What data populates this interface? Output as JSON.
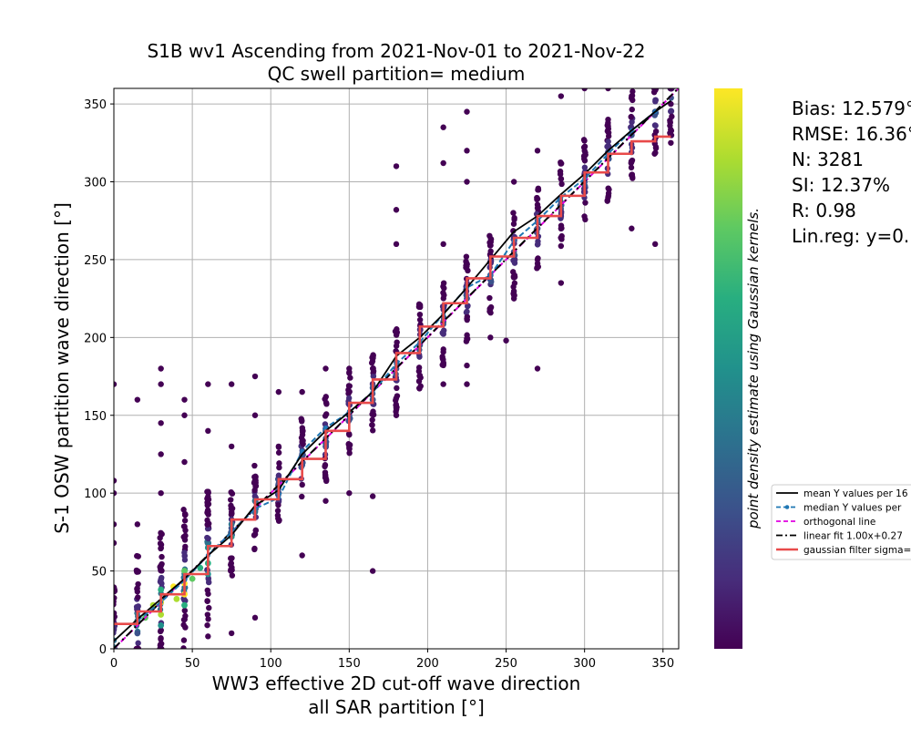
{
  "chart_data": {
    "type": "scatter",
    "title": "S1B wv1 Ascending from 2021-Nov-01 to 2021-Nov-22",
    "subtitle": "QC swell partition= medium",
    "xlabel_line1": "WW3 effective 2D cut-off wave direction",
    "xlabel_line2": "all SAR partition [°]",
    "ylabel": "S-1 OSW partition wave direction [°]",
    "xlim": [
      0,
      360
    ],
    "ylim": [
      0,
      360
    ],
    "xticks": [
      0,
      50,
      100,
      150,
      200,
      250,
      300,
      350
    ],
    "yticks": [
      0,
      50,
      100,
      150,
      200,
      250,
      300,
      350
    ],
    "grid": true,
    "colorbar_label": "point density estimate using Gaussian kernels.",
    "colormap_stops": [
      "#440154",
      "#472d7b",
      "#3b528b",
      "#2c728e",
      "#21918c",
      "#28ae80",
      "#5ec962",
      "#addc30",
      "#fde725"
    ],
    "stats": [
      "Bias: 12.579°",
      "RMSE: 16.36°",
      "N: 3281",
      "SI: 12.37%",
      "R: 0.98",
      "Lin.reg: y=0."
    ],
    "legend": {
      "placement": "right",
      "entries": [
        {
          "label": "mean Y values per 16",
          "color": "#000000",
          "style": "solid"
        },
        {
          "label": "median Y values per",
          "color": "#1f77b4",
          "style": "dashed-dot"
        },
        {
          "label": "orthogonal line",
          "color": "#e000e0",
          "style": "dashed"
        },
        {
          "label": "linear fit 1.00x+0.27",
          "color": "#000000",
          "style": "dashdot"
        },
        {
          "label": "gaussian filter sigma=",
          "color": "#e84a4a",
          "style": "solid-thick"
        }
      ]
    },
    "column_x": [
      0,
      15,
      30,
      45,
      60,
      75,
      90,
      105,
      120,
      135,
      150,
      165,
      180,
      195,
      210,
      225,
      240,
      255,
      270,
      285,
      300,
      315,
      330,
      345,
      355
    ],
    "mean_line": {
      "x": [
        0,
        15,
        30,
        45,
        60,
        75,
        90,
        105,
        120,
        135,
        150,
        165,
        180,
        195,
        210,
        225,
        240,
        255,
        270,
        285,
        300,
        315,
        330,
        345,
        355
      ],
      "y": [
        5,
        19,
        32,
        45,
        60,
        73,
        92,
        102,
        125,
        140,
        152,
        165,
        188,
        200,
        215,
        232,
        250,
        268,
        278,
        292,
        305,
        320,
        333,
        345,
        352
      ]
    },
    "median_line": {
      "x": [
        15,
        30,
        45,
        60,
        75,
        90,
        105,
        120,
        135,
        150,
        165,
        180,
        195,
        210,
        225,
        240,
        255,
        270,
        285,
        300,
        315,
        330,
        345
      ],
      "y": [
        18,
        30,
        44,
        60,
        75,
        90,
        97,
        127,
        142,
        152,
        165,
        183,
        197,
        215,
        232,
        240,
        262,
        275,
        290,
        302,
        318,
        333,
        345
      ]
    },
    "gaussian_steps": {
      "x": [
        0,
        15,
        15,
        30,
        30,
        45,
        45,
        60,
        60,
        75,
        75,
        90,
        90,
        105,
        105,
        120,
        120,
        135,
        135,
        150,
        150,
        165,
        165,
        180,
        180,
        195,
        195,
        210,
        210,
        225,
        225,
        240,
        240,
        255,
        255,
        270,
        270,
        285,
        285,
        300,
        300,
        315,
        315,
        330,
        330,
        345,
        345,
        355
      ],
      "y": [
        16,
        16,
        24,
        24,
        35,
        35,
        48,
        48,
        66,
        66,
        83,
        83,
        96,
        96,
        109,
        109,
        122,
        122,
        140,
        140,
        158,
        158,
        173,
        173,
        190,
        190,
        207,
        207,
        222,
        222,
        238,
        238,
        252,
        252,
        264,
        264,
        278,
        278,
        291,
        291,
        306,
        306,
        318,
        318,
        326,
        326,
        329,
        329
      ]
    },
    "linear_fit": {
      "slope": 1.0,
      "intercept": 0.27
    },
    "orthogonal_line": {
      "x": [
        0,
        360
      ],
      "y": [
        0,
        360
      ]
    },
    "cluster_points": [
      [
        15,
        18,
        3
      ],
      [
        15,
        10,
        2
      ],
      [
        15,
        25,
        1
      ],
      [
        30,
        22,
        7
      ],
      [
        30,
        30,
        8
      ],
      [
        30,
        38,
        5
      ],
      [
        30,
        15,
        4
      ],
      [
        45,
        35,
        8
      ],
      [
        45,
        42,
        8
      ],
      [
        45,
        50,
        6
      ],
      [
        45,
        28,
        5
      ],
      [
        60,
        55,
        5
      ],
      [
        60,
        65,
        4
      ],
      [
        60,
        48,
        4
      ],
      [
        20,
        20,
        6
      ],
      [
        25,
        28,
        7
      ],
      [
        38,
        40,
        8
      ],
      [
        40,
        32,
        7
      ],
      [
        50,
        45,
        6
      ],
      [
        55,
        52,
        5
      ],
      [
        75,
        72,
        4
      ],
      [
        75,
        80,
        3
      ],
      [
        90,
        88,
        3
      ],
      [
        90,
        95,
        3
      ],
      [
        105,
        100,
        2
      ],
      [
        120,
        118,
        2
      ],
      [
        120,
        125,
        2
      ],
      [
        135,
        130,
        2
      ],
      [
        135,
        140,
        2
      ],
      [
        150,
        150,
        2
      ],
      [
        165,
        160,
        2
      ],
      [
        180,
        180,
        2
      ],
      [
        195,
        195,
        2
      ],
      [
        210,
        210,
        2
      ],
      [
        225,
        225,
        2
      ],
      [
        240,
        240,
        2
      ],
      [
        255,
        255,
        2
      ],
      [
        270,
        270,
        2
      ],
      [
        285,
        285,
        2
      ],
      [
        300,
        300,
        2
      ],
      [
        315,
        315,
        2
      ],
      [
        330,
        330,
        2
      ],
      [
        345,
        345,
        2
      ]
    ],
    "outlier_points": [
      [
        0,
        170
      ],
      [
        0,
        108
      ],
      [
        0,
        100
      ],
      [
        0,
        80
      ],
      [
        0,
        68
      ],
      [
        15,
        160
      ],
      [
        15,
        80
      ],
      [
        30,
        180
      ],
      [
        30,
        170
      ],
      [
        30,
        145
      ],
      [
        30,
        125
      ],
      [
        30,
        100
      ],
      [
        45,
        160
      ],
      [
        45,
        150
      ],
      [
        45,
        120
      ],
      [
        60,
        170
      ],
      [
        60,
        140
      ],
      [
        60,
        8
      ],
      [
        75,
        170
      ],
      [
        75,
        130
      ],
      [
        75,
        10
      ],
      [
        90,
        175
      ],
      [
        90,
        150
      ],
      [
        90,
        20
      ],
      [
        105,
        165
      ],
      [
        105,
        130
      ],
      [
        120,
        165
      ],
      [
        120,
        60
      ],
      [
        135,
        180
      ],
      [
        135,
        95
      ],
      [
        150,
        180
      ],
      [
        150,
        100
      ],
      [
        165,
        180
      ],
      [
        165,
        50
      ],
      [
        165,
        98
      ],
      [
        180,
        310
      ],
      [
        180,
        282
      ],
      [
        180,
        260
      ],
      [
        180,
        150
      ],
      [
        195,
        220
      ],
      [
        210,
        335
      ],
      [
        210,
        312
      ],
      [
        210,
        260
      ],
      [
        210,
        170
      ],
      [
        225,
        345
      ],
      [
        225,
        320
      ],
      [
        225,
        300
      ],
      [
        225,
        170
      ],
      [
        240,
        240
      ],
      [
        255,
        300
      ],
      [
        255,
        225
      ],
      [
        270,
        320
      ],
      [
        270,
        180
      ],
      [
        285,
        355
      ],
      [
        285,
        235
      ],
      [
        300,
        360
      ],
      [
        300,
        320
      ],
      [
        315,
        360
      ],
      [
        315,
        340
      ],
      [
        330,
        355
      ],
      [
        330,
        270
      ],
      [
        345,
        260
      ],
      [
        345,
        345
      ],
      [
        355,
        350
      ],
      [
        355,
        325
      ],
      [
        225,
        182
      ],
      [
        240,
        200
      ],
      [
        250,
        198
      ],
      [
        270,
        250
      ],
      [
        315,
        290
      ]
    ]
  }
}
